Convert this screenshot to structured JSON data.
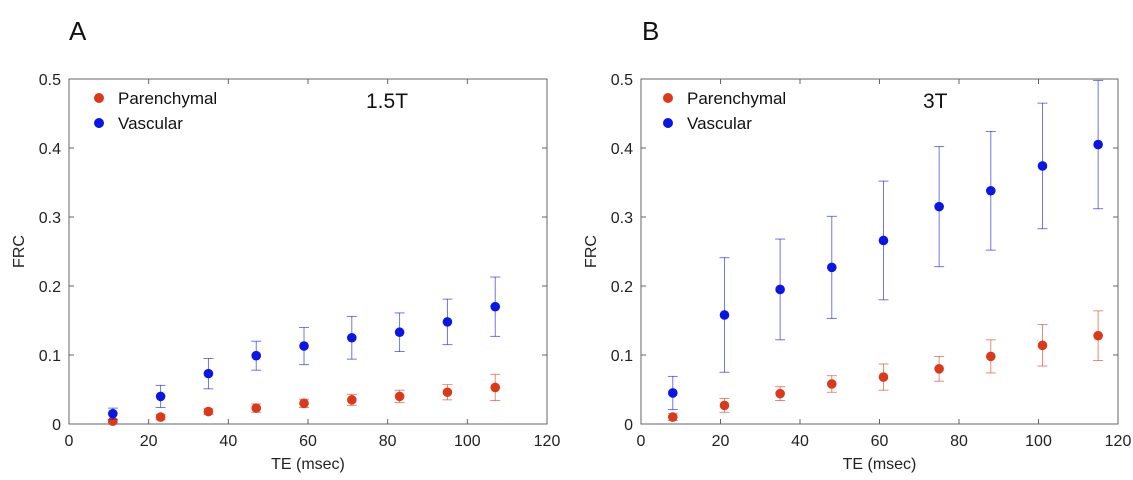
{
  "panels": [
    {
      "letter": "A"
    },
    {
      "letter": "B"
    }
  ],
  "chart_data": [
    {
      "type": "scatter",
      "panel": "A",
      "annotation": "1.5T",
      "xlabel": "TE (msec)",
      "ylabel": "FRC",
      "xlim": [
        0,
        120
      ],
      "ylim": [
        0,
        0.5
      ],
      "xticks": [
        0,
        20,
        40,
        60,
        80,
        100,
        120
      ],
      "yticks": [
        0,
        0.1,
        0.2,
        0.3,
        0.4,
        0.5
      ],
      "ytick_labels": [
        "0",
        "0.1",
        "0.2",
        "0.3",
        "0.4",
        "0.5"
      ],
      "legend_position": "top-left",
      "grid": false,
      "series": [
        {
          "name": "Parenchymal",
          "color": "#d93a1b",
          "x": [
            11,
            23,
            35,
            47,
            59,
            71,
            83,
            95,
            107
          ],
          "y": [
            0.004,
            0.01,
            0.018,
            0.023,
            0.03,
            0.035,
            0.04,
            0.046,
            0.053
          ],
          "err": [
            0.002,
            0.004,
            0.004,
            0.006,
            0.006,
            0.008,
            0.009,
            0.011,
            0.019
          ]
        },
        {
          "name": "Vascular",
          "color": "#0b16e0",
          "x": [
            11,
            23,
            35,
            47,
            59,
            71,
            83,
            95,
            107
          ],
          "y": [
            0.015,
            0.04,
            0.073,
            0.099,
            0.113,
            0.125,
            0.133,
            0.148,
            0.17
          ],
          "err": [
            0.008,
            0.016,
            0.022,
            0.021,
            0.027,
            0.031,
            0.028,
            0.033,
            0.043
          ]
        }
      ]
    },
    {
      "type": "scatter",
      "panel": "B",
      "annotation": "3T",
      "xlabel": "TE (msec)",
      "ylabel": "FRC",
      "xlim": [
        0,
        120
      ],
      "ylim": [
        0,
        0.5
      ],
      "xticks": [
        0,
        20,
        40,
        60,
        80,
        100,
        120
      ],
      "yticks": [
        0,
        0.1,
        0.2,
        0.3,
        0.4,
        0.5
      ],
      "ytick_labels": [
        "0",
        "0.1",
        "0.2",
        "0.3",
        "0.4",
        "0.5"
      ],
      "legend_position": "top-left",
      "grid": false,
      "series": [
        {
          "name": "Parenchymal",
          "color": "#d93a1b",
          "x": [
            8,
            21,
            35,
            48,
            61,
            75,
            88,
            101,
            115
          ],
          "y": [
            0.01,
            0.027,
            0.044,
            0.058,
            0.068,
            0.08,
            0.098,
            0.114,
            0.128
          ],
          "err": [
            0.005,
            0.01,
            0.01,
            0.012,
            0.019,
            0.018,
            0.024,
            0.03,
            0.036
          ]
        },
        {
          "name": "Vascular",
          "color": "#0b16e0",
          "x": [
            8,
            21,
            35,
            48,
            61,
            75,
            88,
            101,
            115
          ],
          "y": [
            0.045,
            0.158,
            0.195,
            0.227,
            0.266,
            0.315,
            0.338,
            0.374,
            0.405
          ],
          "err": [
            0.024,
            0.083,
            0.073,
            0.074,
            0.086,
            0.087,
            0.086,
            0.091,
            0.093
          ]
        }
      ]
    }
  ]
}
